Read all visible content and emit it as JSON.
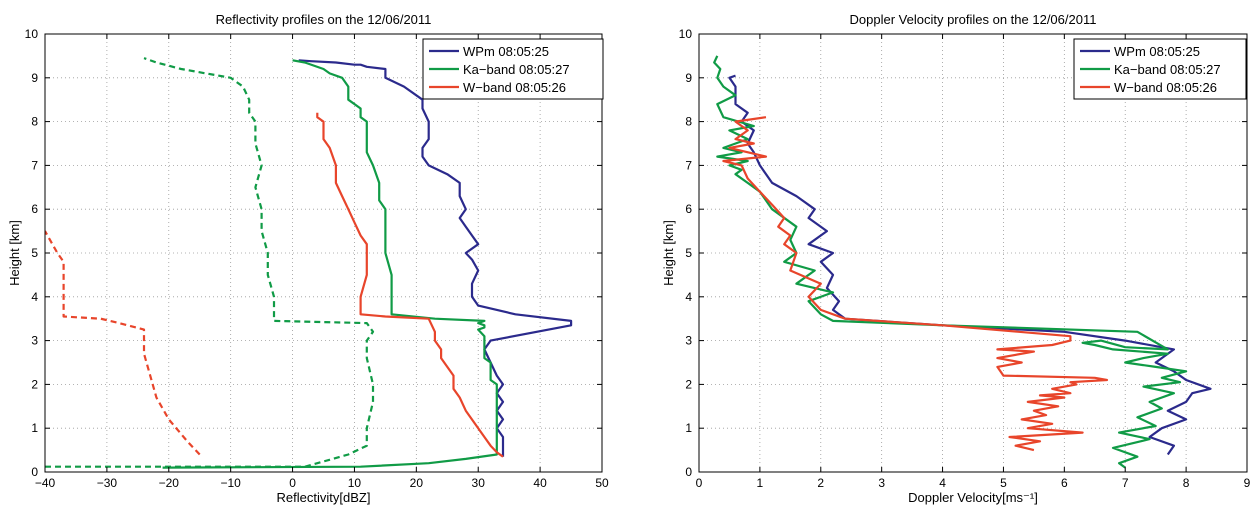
{
  "chart_data": [
    {
      "type": "line",
      "title": "Reflectivity profiles on the 12/06/2011",
      "xlabel": "Reflectivity[dBZ]",
      "ylabel": "Height [km]",
      "xlim": [
        -40,
        50
      ],
      "ylim": [
        0,
        10
      ],
      "xticks": [
        -40,
        -30,
        -20,
        -10,
        0,
        10,
        20,
        30,
        40,
        50
      ],
      "xtick_labels": [
        "−40",
        "−30",
        "−20",
        "−10",
        "0",
        "10",
        "20",
        "30",
        "40",
        "50"
      ],
      "yticks": [
        0,
        1,
        2,
        3,
        4,
        5,
        6,
        7,
        8,
        9,
        10
      ],
      "grid": true,
      "legend_position": "top-right",
      "legend": [
        "WPm 08:05:25",
        "Ka−band 08:05:27",
        "W−band 08:05:26"
      ],
      "series": [
        {
          "name": "WPm 08:05:25",
          "color": "#2b2a8c",
          "style": "solid",
          "x": [
            34,
            34,
            34,
            33,
            34,
            33,
            34,
            33,
            34,
            33,
            32,
            31,
            32,
            45,
            45,
            36,
            30,
            29,
            29,
            30,
            29,
            28,
            30,
            29,
            28,
            27,
            28,
            27,
            27,
            25,
            22,
            21,
            21,
            22,
            22,
            22,
            21,
            21,
            18,
            15,
            15,
            12,
            11,
            10,
            7,
            3,
            1
          ],
          "y": [
            0.35,
            0.55,
            0.8,
            1.0,
            1.2,
            1.4,
            1.6,
            1.8,
            2.0,
            2.2,
            2.5,
            2.8,
            3.0,
            3.35,
            3.45,
            3.6,
            3.8,
            4.0,
            4.3,
            4.6,
            4.85,
            5.0,
            5.2,
            5.4,
            5.6,
            5.8,
            6.0,
            6.3,
            6.6,
            6.8,
            7.0,
            7.2,
            7.4,
            7.6,
            7.8,
            8.0,
            8.3,
            8.5,
            8.8,
            9.0,
            9.2,
            9.25,
            9.3,
            9.3,
            9.35,
            9.38,
            9.4
          ]
        },
        {
          "name": "Ka−band 08:05:27",
          "color": "#109b46",
          "style": "solid",
          "x": [
            -21,
            11,
            22,
            28,
            33,
            33,
            33,
            33,
            33,
            32,
            32,
            31,
            31,
            31,
            30,
            31,
            31,
            30,
            31,
            23,
            16,
            16,
            16,
            15,
            15,
            15,
            14,
            14,
            13,
            12,
            12,
            12,
            11,
            11,
            9,
            9,
            8,
            6,
            5,
            2,
            0
          ],
          "y": [
            0.1,
            0.12,
            0.2,
            0.3,
            0.4,
            0.8,
            1.2,
            1.6,
            2.0,
            2.1,
            2.5,
            2.6,
            3.0,
            3.1,
            3.25,
            3.3,
            3.35,
            3.4,
            3.45,
            3.5,
            3.6,
            4.0,
            4.5,
            5.0,
            5.5,
            6.0,
            6.2,
            6.6,
            7.0,
            7.3,
            7.6,
            8.0,
            8.1,
            8.3,
            8.5,
            8.8,
            9.0,
            9.1,
            9.2,
            9.35,
            9.4
          ]
        },
        {
          "name": "W−band 08:05:26",
          "color": "#e8452b",
          "style": "solid",
          "x": [
            34,
            33,
            32,
            31,
            30,
            28,
            27,
            26,
            26,
            25,
            24,
            24,
            23,
            23,
            22,
            15,
            11,
            11,
            12,
            12,
            12,
            11,
            10,
            9,
            8,
            7,
            7,
            6,
            5,
            5,
            5,
            5,
            4,
            4
          ],
          "y": [
            0.35,
            0.45,
            0.6,
            0.8,
            1.0,
            1.4,
            1.7,
            1.9,
            2.2,
            2.4,
            2.6,
            2.8,
            3.0,
            3.2,
            3.5,
            3.55,
            3.6,
            4.0,
            4.5,
            5.0,
            5.2,
            5.4,
            5.7,
            6.0,
            6.3,
            6.6,
            7.0,
            7.4,
            7.6,
            7.8,
            7.95,
            8.0,
            8.1,
            8.2
          ]
        },
        {
          "name": "",
          "color": "#109b46",
          "style": "dashed",
          "x": [
            -40,
            2,
            4,
            9,
            12,
            12,
            13,
            13,
            12,
            12,
            13,
            12,
            -3,
            -3,
            -3,
            -4,
            -4,
            -5,
            -5,
            -6,
            -5,
            -6,
            -6,
            -7,
            -7,
            -8,
            -10,
            -14,
            -18,
            -22,
            -24
          ],
          "y": [
            0.12,
            0.12,
            0.2,
            0.4,
            0.6,
            1.0,
            1.6,
            2.0,
            2.6,
            3.0,
            3.2,
            3.4,
            3.45,
            3.6,
            4.0,
            4.5,
            5.0,
            5.5,
            6.0,
            6.5,
            7.0,
            7.5,
            8.0,
            8.2,
            8.5,
            8.8,
            9.0,
            9.1,
            9.2,
            9.35,
            9.45
          ]
        },
        {
          "name": "",
          "color": "#e8452b",
          "style": "dashed",
          "x": [
            -15,
            -17,
            -20,
            -22,
            -23,
            -24,
            -24,
            -28,
            -31,
            -37,
            -37,
            -37,
            -37,
            -38,
            -40
          ],
          "y": [
            0.4,
            0.7,
            1.2,
            1.7,
            2.2,
            2.7,
            3.25,
            3.4,
            3.5,
            3.55,
            4.0,
            4.5,
            4.8,
            5.0,
            5.5
          ]
        }
      ]
    },
    {
      "type": "line",
      "title": "Doppler Velocity profiles on the 12/06/2011",
      "xlabel": "Doppler Velocity[ms⁻¹]",
      "ylabel": "Height [km]",
      "xlim": [
        0,
        9
      ],
      "ylim": [
        0,
        10
      ],
      "xticks": [
        0,
        1,
        2,
        3,
        4,
        5,
        6,
        7,
        8,
        9
      ],
      "xtick_labels": [
        "0",
        "1",
        "2",
        "3",
        "4",
        "5",
        "6",
        "7",
        "8",
        "9"
      ],
      "yticks": [
        0,
        1,
        2,
        3,
        4,
        5,
        6,
        7,
        8,
        9,
        10
      ],
      "grid": true,
      "legend_position": "top-right",
      "legend": [
        "WPm 08:05:25",
        "Ka−band 08:05:27",
        "W−band 08:05:26"
      ],
      "series": [
        {
          "name": "WPm 08:05:25",
          "color": "#2b2a8c",
          "style": "solid",
          "x": [
            7.7,
            7.8,
            7.4,
            7.6,
            8.0,
            7.7,
            8.0,
            8.1,
            8.4,
            8.0,
            7.8,
            7.5,
            7.8,
            7.0,
            6.0,
            4.0,
            2.4,
            2.2,
            2.3,
            2.1,
            2.2,
            2.0,
            2.2,
            1.8,
            2.1,
            1.8,
            1.9,
            1.6,
            1.2,
            1.0,
            0.9,
            0.8,
            0.9,
            0.7,
            0.8,
            0.6,
            0.6,
            0.6,
            0.55,
            0.5,
            0.6
          ],
          "y": [
            0.4,
            0.6,
            0.8,
            1.0,
            1.2,
            1.4,
            1.6,
            1.8,
            1.9,
            2.1,
            2.3,
            2.5,
            2.8,
            3.0,
            3.2,
            3.35,
            3.5,
            3.7,
            3.9,
            4.2,
            4.5,
            4.8,
            5.0,
            5.2,
            5.5,
            5.8,
            6.0,
            6.3,
            6.6,
            7.0,
            7.3,
            7.5,
            7.8,
            8.0,
            8.2,
            8.4,
            8.6,
            8.8,
            8.9,
            9.0,
            9.05
          ]
        },
        {
          "name": "Ka−band 08:05:27",
          "color": "#109b46",
          "style": "solid",
          "x": [
            7.0,
            6.9,
            7.2,
            6.8,
            7.4,
            6.9,
            7.5,
            7.2,
            7.6,
            7.4,
            7.8,
            7.3,
            7.9,
            7.6,
            8.0,
            7.5,
            7.0,
            7.3,
            7.7,
            6.8,
            6.5,
            6.3,
            6.6,
            7.0,
            7.7,
            7.2,
            4.0,
            2.2,
            2.0,
            1.8,
            2.2,
            1.6,
            1.9,
            1.4,
            1.6,
            1.5,
            1.6,
            1.2,
            1.0,
            0.8,
            0.6,
            0.7,
            0.5,
            0.8,
            0.3,
            0.7,
            0.4,
            0.8,
            0.5,
            0.9,
            0.4,
            0.3,
            0.6,
            0.4,
            0.3,
            0.35,
            0.25,
            0.3
          ],
          "y": [
            0.1,
            0.2,
            0.35,
            0.55,
            0.75,
            0.9,
            1.05,
            1.25,
            1.45,
            1.6,
            1.8,
            1.95,
            2.05,
            2.15,
            2.3,
            2.4,
            2.5,
            2.6,
            2.7,
            2.8,
            2.9,
            2.95,
            3.0,
            2.85,
            2.8,
            3.2,
            3.35,
            3.45,
            3.6,
            3.9,
            4.1,
            4.3,
            4.6,
            4.8,
            5.0,
            5.3,
            5.6,
            6.0,
            6.4,
            6.6,
            6.8,
            6.9,
            7.0,
            7.1,
            7.2,
            7.3,
            7.4,
            7.6,
            7.8,
            7.9,
            8.1,
            8.4,
            8.6,
            8.8,
            9.0,
            9.2,
            9.35,
            9.5
          ]
        },
        {
          "name": "W−band 08:05:26",
          "color": "#e8452b",
          "style": "solid",
          "x": [
            5.5,
            5.2,
            5.6,
            5.1,
            6.3,
            5.4,
            5.8,
            5.3,
            5.7,
            5.5,
            5.9,
            5.4,
            6.0,
            5.6,
            6.1,
            5.8,
            6.2,
            6.1,
            6.7,
            6.5,
            5.0,
            4.9,
            5.3,
            4.9,
            5.5,
            4.9,
            5.8,
            6.1,
            6.1,
            4.0,
            2.4,
            2.0,
            1.8,
            2.0,
            1.5,
            1.6,
            1.4,
            1.5,
            1.3,
            1.4,
            1.2,
            1.0,
            0.8,
            0.7,
            0.4,
            1.1,
            0.5,
            0.9,
            0.6,
            0.8,
            0.6,
            1.1
          ],
          "y": [
            0.5,
            0.6,
            0.7,
            0.8,
            0.9,
            1.0,
            1.1,
            1.2,
            1.3,
            1.4,
            1.5,
            1.6,
            1.7,
            1.75,
            1.8,
            1.9,
            2.0,
            2.05,
            2.1,
            2.15,
            2.2,
            2.4,
            2.5,
            2.6,
            2.75,
            2.8,
            2.9,
            3.0,
            3.1,
            3.35,
            3.5,
            3.7,
            4.0,
            4.3,
            4.6,
            5.0,
            5.2,
            5.4,
            5.6,
            5.8,
            6.1,
            6.4,
            6.7,
            7.0,
            7.1,
            7.2,
            7.4,
            7.5,
            7.6,
            7.8,
            8.0,
            8.1
          ]
        }
      ]
    }
  ]
}
